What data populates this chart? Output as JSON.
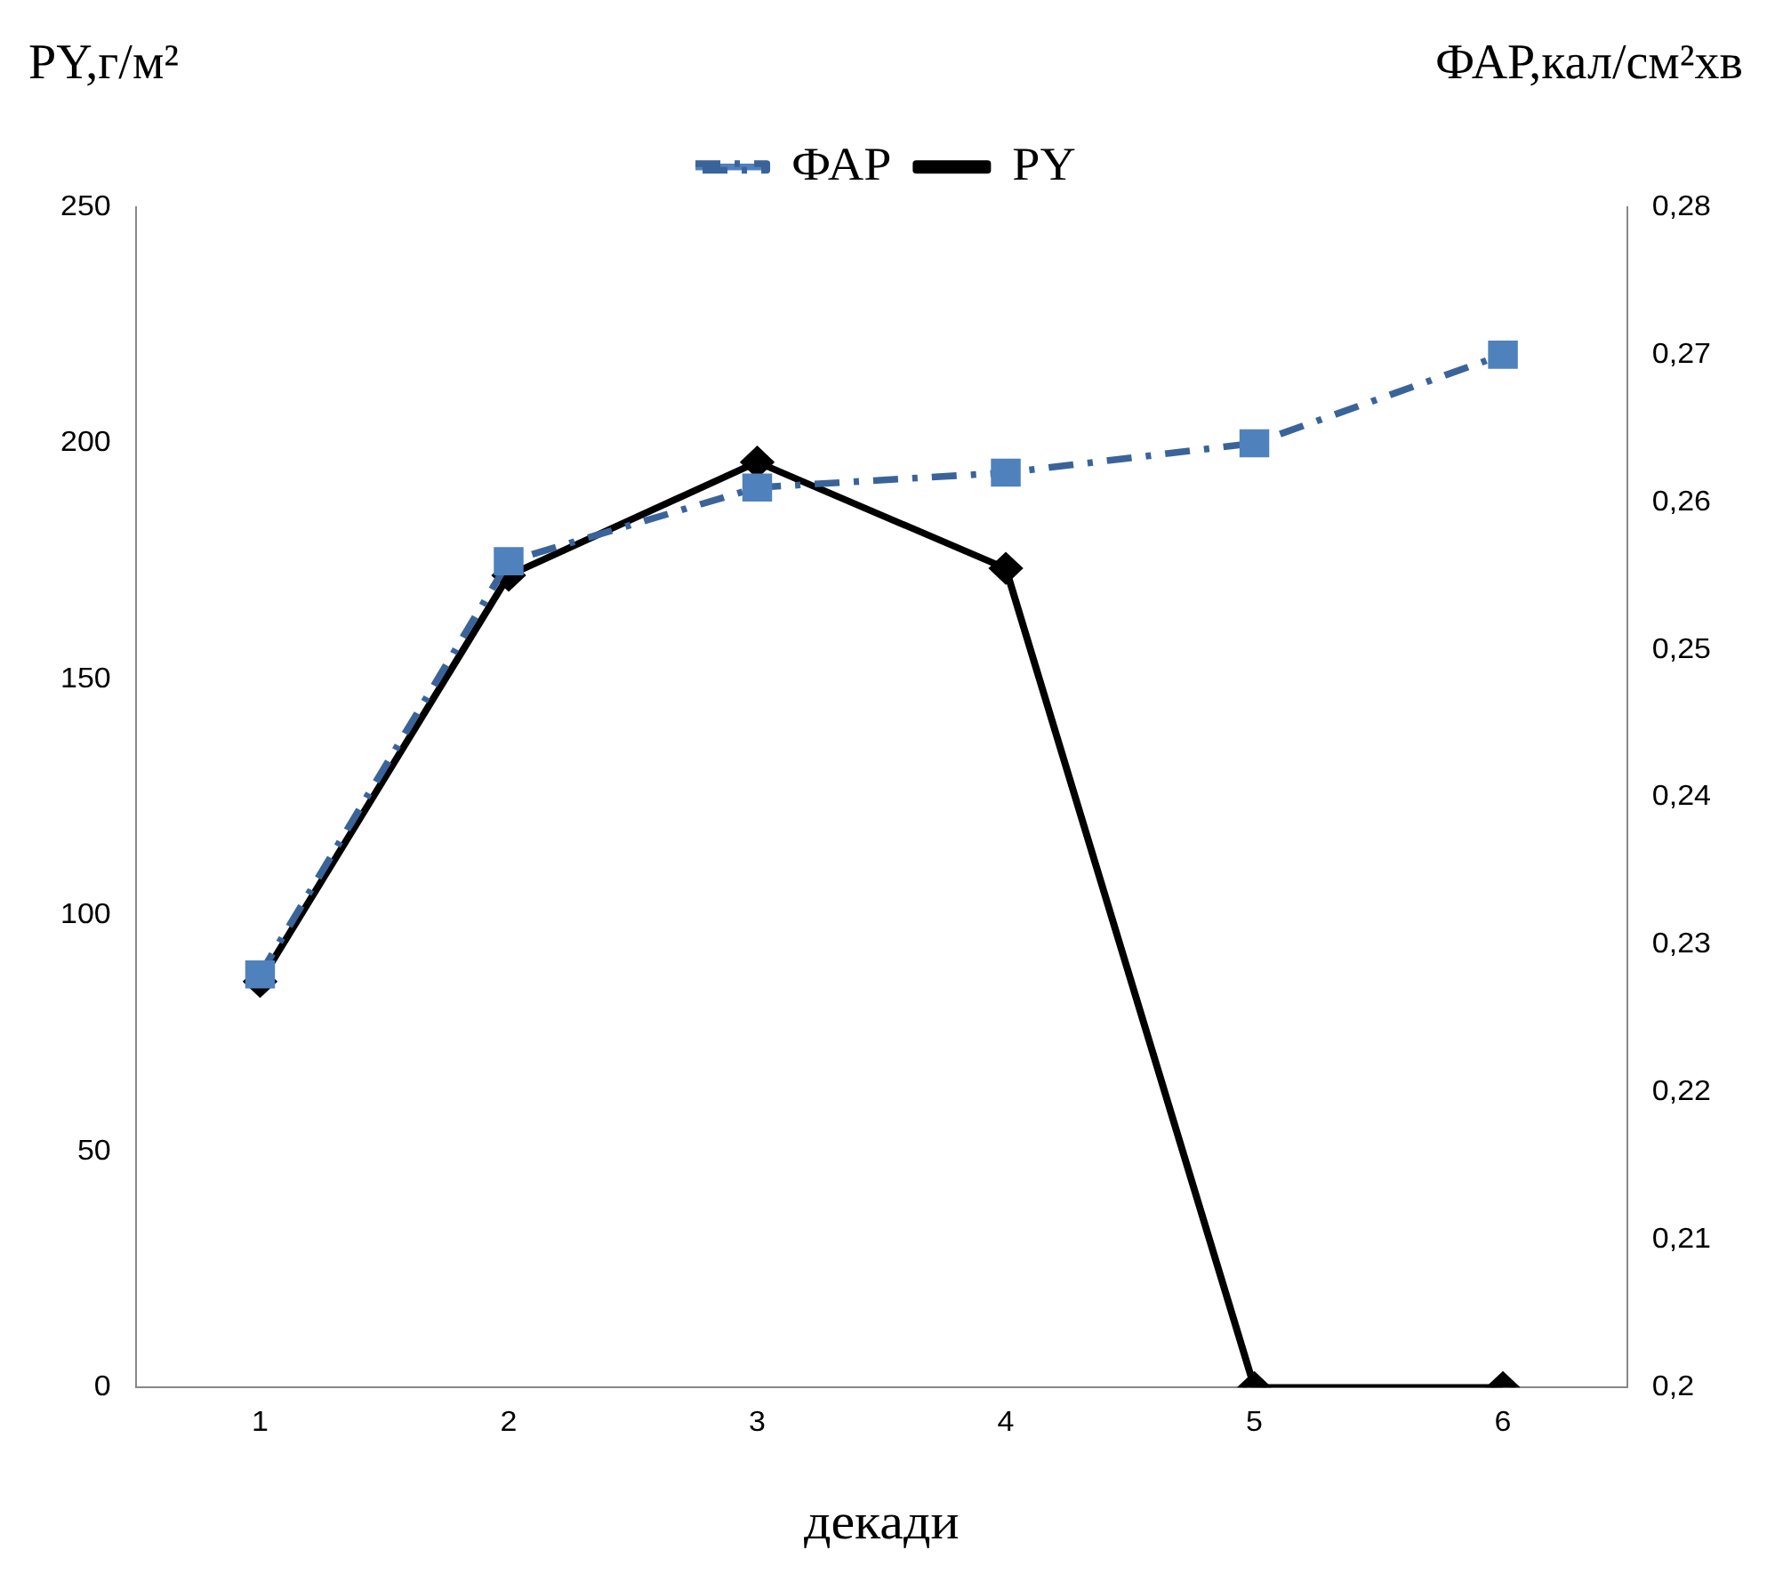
{
  "chart_data": {
    "type": "line",
    "xlabel": "декади",
    "ylabel": "PY,г/м²",
    "y2label": "ФАР,кал/см²хв",
    "categories": [
      "1",
      "2",
      "3",
      "4",
      "5",
      "6"
    ],
    "series": [
      {
        "name": "PY",
        "color": "#000000",
        "values": [
          86,
          172,
          196,
          173.5,
          0,
          0
        ],
        "marker": "diamond",
        "line_style": "solid"
      },
      {
        "name": "ФАР",
        "color": "#4f81bd",
        "values": [
          0.228,
          0.256,
          0.261,
          0.262,
          0.264,
          0.27
        ],
        "axis": "y2",
        "marker": "square",
        "line_style": "dashed"
      }
    ],
    "ylim": [
      0,
      250
    ],
    "yticks": [
      0,
      50,
      100,
      150,
      200,
      250
    ],
    "y2lim": [
      0.2,
      0.28
    ],
    "y2ticks": [
      {
        "value": 0.2,
        "label": "0,2"
      },
      {
        "value": 0.21,
        "label": "0,21"
      },
      {
        "value": 0.22,
        "label": "0,22"
      },
      {
        "value": 0.23,
        "label": "0,23"
      },
      {
        "value": 0.24,
        "label": "0,24"
      },
      {
        "value": 0.25,
        "label": "0,25"
      },
      {
        "value": 0.26,
        "label": "0,26"
      },
      {
        "value": 0.27,
        "label": "0,27"
      },
      {
        "value": 0.28,
        "label": "0,28"
      }
    ],
    "grid": false,
    "legend": "top"
  }
}
